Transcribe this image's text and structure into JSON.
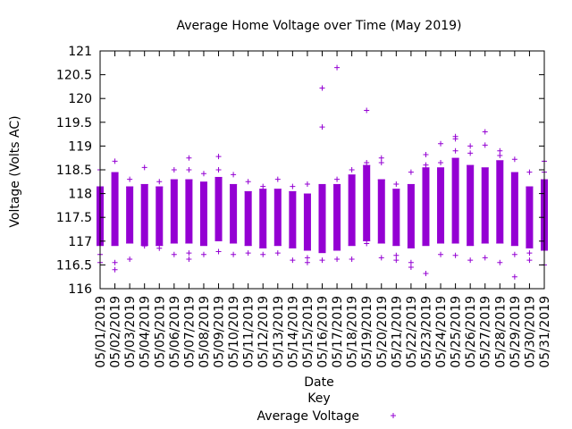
{
  "chart_data": {
    "type": "scatter",
    "title": "Average Home Voltage over Time (May 2019)",
    "xlabel": "Date",
    "ylabel": "Voltage (Volts AC)",
    "legend_title": "Key",
    "legend_placement": "bottom-center",
    "grid": false,
    "ylim": [
      116,
      121
    ],
    "yticks": [
      "116",
      "116.5",
      "117",
      "117.5",
      "118",
      "118.5",
      "119",
      "119.5",
      "120",
      "120.5",
      "121"
    ],
    "categories": [
      "05/01/2019",
      "05/02/2019",
      "05/03/2019",
      "05/04/2019",
      "05/05/2019",
      "05/06/2019",
      "05/07/2019",
      "05/08/2019",
      "05/09/2019",
      "05/10/2019",
      "05/11/2019",
      "05/12/2019",
      "05/13/2019",
      "05/14/2019",
      "05/15/2019",
      "05/16/2019",
      "05/17/2019",
      "05/18/2019",
      "05/19/2019",
      "05/20/2019",
      "05/21/2019",
      "05/22/2019",
      "05/23/2019",
      "05/24/2019",
      "05/25/2019",
      "05/26/2019",
      "05/27/2019",
      "05/28/2019",
      "05/29/2019",
      "05/30/2019",
      "05/31/2019"
    ],
    "series": [
      {
        "name": "Average Voltage",
        "color": "#9400d3",
        "marker": "plus",
        "band_low": [
          116.9,
          116.9,
          116.95,
          116.9,
          116.9,
          116.95,
          116.95,
          116.9,
          117.0,
          116.95,
          116.9,
          116.85,
          116.9,
          116.85,
          116.8,
          116.75,
          116.8,
          116.9,
          117.0,
          116.95,
          116.9,
          116.85,
          116.9,
          116.95,
          116.95,
          116.9,
          116.95,
          116.95,
          116.9,
          116.85,
          116.8
        ],
        "band_high": [
          118.15,
          118.45,
          118.15,
          118.2,
          118.15,
          118.3,
          118.3,
          118.25,
          118.35,
          118.2,
          118.05,
          118.1,
          118.1,
          118.05,
          118.0,
          118.2,
          118.2,
          118.4,
          118.6,
          118.3,
          118.1,
          118.2,
          118.55,
          118.55,
          118.75,
          118.6,
          118.55,
          118.7,
          118.45,
          118.15,
          118.3
        ],
        "points": [
          {
            "x": "05/01/2019",
            "y": 118.5
          },
          {
            "x": "05/01/2019",
            "y": 116.72
          },
          {
            "x": "05/01/2019",
            "y": 116.55
          },
          {
            "x": "05/02/2019",
            "y": 118.68
          },
          {
            "x": "05/02/2019",
            "y": 116.55
          },
          {
            "x": "05/02/2019",
            "y": 116.4
          },
          {
            "x": "05/03/2019",
            "y": 118.3
          },
          {
            "x": "05/03/2019",
            "y": 116.62
          },
          {
            "x": "05/04/2019",
            "y": 118.55
          },
          {
            "x": "05/04/2019",
            "y": 116.9
          },
          {
            "x": "05/05/2019",
            "y": 118.25
          },
          {
            "x": "05/05/2019",
            "y": 116.85
          },
          {
            "x": "05/06/2019",
            "y": 118.5
          },
          {
            "x": "05/06/2019",
            "y": 116.72
          },
          {
            "x": "05/07/2019",
            "y": 118.75
          },
          {
            "x": "05/07/2019",
            "y": 118.5
          },
          {
            "x": "05/07/2019",
            "y": 116.75
          },
          {
            "x": "05/07/2019",
            "y": 116.62
          },
          {
            "x": "05/08/2019",
            "y": 118.42
          },
          {
            "x": "05/08/2019",
            "y": 116.72
          },
          {
            "x": "05/09/2019",
            "y": 118.78
          },
          {
            "x": "05/09/2019",
            "y": 118.5
          },
          {
            "x": "05/09/2019",
            "y": 116.78
          },
          {
            "x": "05/10/2019",
            "y": 118.4
          },
          {
            "x": "05/10/2019",
            "y": 116.72
          },
          {
            "x": "05/11/2019",
            "y": 118.25
          },
          {
            "x": "05/11/2019",
            "y": 116.75
          },
          {
            "x": "05/12/2019",
            "y": 118.15
          },
          {
            "x": "05/12/2019",
            "y": 116.72
          },
          {
            "x": "05/13/2019",
            "y": 118.3
          },
          {
            "x": "05/13/2019",
            "y": 116.75
          },
          {
            "x": "05/14/2019",
            "y": 118.15
          },
          {
            "x": "05/14/2019",
            "y": 116.6
          },
          {
            "x": "05/15/2019",
            "y": 118.2
          },
          {
            "x": "05/15/2019",
            "y": 116.65
          },
          {
            "x": "05/15/2019",
            "y": 116.55
          },
          {
            "x": "05/16/2019",
            "y": 120.22
          },
          {
            "x": "05/16/2019",
            "y": 119.4
          },
          {
            "x": "05/16/2019",
            "y": 116.6
          },
          {
            "x": "05/17/2019",
            "y": 120.65
          },
          {
            "x": "05/17/2019",
            "y": 118.3
          },
          {
            "x": "05/17/2019",
            "y": 116.62
          },
          {
            "x": "05/18/2019",
            "y": 118.5
          },
          {
            "x": "05/18/2019",
            "y": 116.62
          },
          {
            "x": "05/19/2019",
            "y": 119.75
          },
          {
            "x": "05/19/2019",
            "y": 118.65
          },
          {
            "x": "05/19/2019",
            "y": 116.95
          },
          {
            "x": "05/20/2019",
            "y": 118.75
          },
          {
            "x": "05/20/2019",
            "y": 118.65
          },
          {
            "x": "05/20/2019",
            "y": 116.65
          },
          {
            "x": "05/21/2019",
            "y": 118.2
          },
          {
            "x": "05/21/2019",
            "y": 116.7
          },
          {
            "x": "05/21/2019",
            "y": 116.6
          },
          {
            "x": "05/22/2019",
            "y": 118.45
          },
          {
            "x": "05/22/2019",
            "y": 116.55
          },
          {
            "x": "05/22/2019",
            "y": 116.45
          },
          {
            "x": "05/23/2019",
            "y": 118.82
          },
          {
            "x": "05/23/2019",
            "y": 118.6
          },
          {
            "x": "05/23/2019",
            "y": 116.32
          },
          {
            "x": "05/24/2019",
            "y": 119.05
          },
          {
            "x": "05/24/2019",
            "y": 118.65
          },
          {
            "x": "05/24/2019",
            "y": 116.72
          },
          {
            "x": "05/25/2019",
            "y": 119.2
          },
          {
            "x": "05/25/2019",
            "y": 119.15
          },
          {
            "x": "05/25/2019",
            "y": 118.9
          },
          {
            "x": "05/25/2019",
            "y": 116.7
          },
          {
            "x": "05/26/2019",
            "y": 119.0
          },
          {
            "x": "05/26/2019",
            "y": 118.85
          },
          {
            "x": "05/26/2019",
            "y": 116.6
          },
          {
            "x": "05/27/2019",
            "y": 119.3
          },
          {
            "x": "05/27/2019",
            "y": 119.02
          },
          {
            "x": "05/27/2019",
            "y": 116.65
          },
          {
            "x": "05/28/2019",
            "y": 118.9
          },
          {
            "x": "05/28/2019",
            "y": 118.8
          },
          {
            "x": "05/28/2019",
            "y": 116.55
          },
          {
            "x": "05/29/2019",
            "y": 118.72
          },
          {
            "x": "05/29/2019",
            "y": 116.72
          },
          {
            "x": "05/29/2019",
            "y": 116.25
          },
          {
            "x": "05/30/2019",
            "y": 118.45
          },
          {
            "x": "05/30/2019",
            "y": 116.75
          },
          {
            "x": "05/30/2019",
            "y": 116.6
          },
          {
            "x": "05/31/2019",
            "y": 118.68
          },
          {
            "x": "05/31/2019",
            "y": 118.45
          },
          {
            "x": "05/31/2019",
            "y": 116.5
          }
        ]
      }
    ]
  }
}
